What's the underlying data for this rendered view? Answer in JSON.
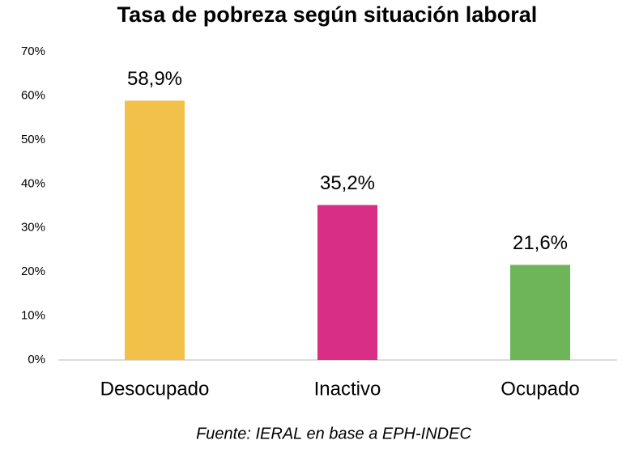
{
  "chart_data": {
    "type": "bar",
    "title": "Tasa de pobreza según situación laboral",
    "categories": [
      "Desocupado",
      "Inactivo",
      "Ocupado"
    ],
    "values": [
      58.9,
      35.2,
      21.6
    ],
    "value_labels": [
      "58,9%",
      "35,2%",
      "21,6%"
    ],
    "colors": [
      "#f2c14a",
      "#d82e86",
      "#6db558"
    ],
    "ylim": [
      0,
      70
    ],
    "yticks": [
      {
        "value": 0,
        "label": "0%"
      },
      {
        "value": 10,
        "label": "10%"
      },
      {
        "value": 20,
        "label": "20%"
      },
      {
        "value": 30,
        "label": "30%"
      },
      {
        "value": 40,
        "label": "40%"
      },
      {
        "value": 50,
        "label": "50%"
      },
      {
        "value": 60,
        "label": "60%"
      },
      {
        "value": 70,
        "label": "70%"
      }
    ],
    "grid": false,
    "source": "Fuente: IERAL en base a EPH-INDEC"
  }
}
